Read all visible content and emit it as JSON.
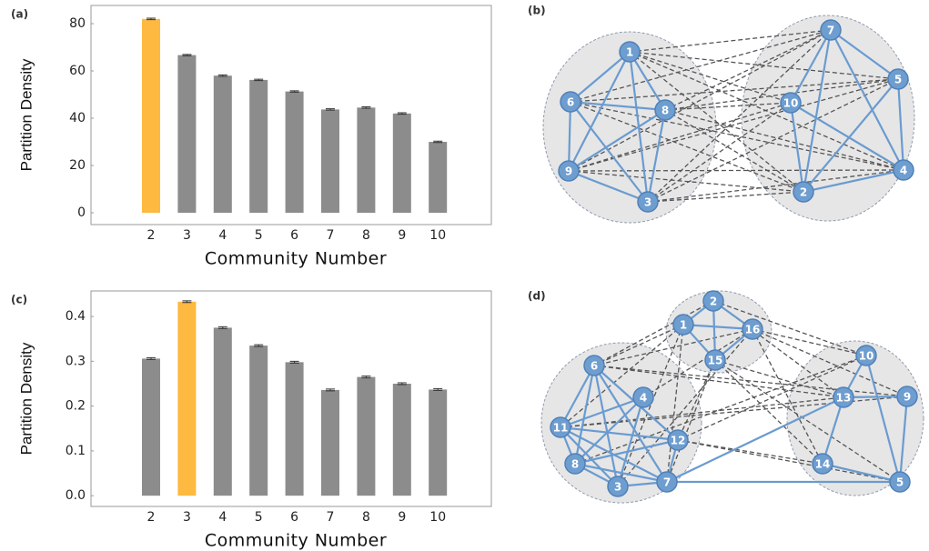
{
  "chart_data": [
    {
      "type": "bar",
      "panel": "(a)",
      "ylabel": "Partition Density",
      "xlabel": "Community Number",
      "categories": [
        "2",
        "3",
        "4",
        "5",
        "6",
        "7",
        "8",
        "9",
        "10"
      ],
      "values": [
        82,
        66.7,
        58,
        56.2,
        51.3,
        43.7,
        44.5,
        42,
        30
      ],
      "errors": [
        0.3,
        0.3,
        0.3,
        0.3,
        0.3,
        0.3,
        0.3,
        0.3,
        0.3
      ],
      "colors": [
        "#fdb940",
        "#8c8c8c",
        "#8c8c8c",
        "#8c8c8c",
        "#8c8c8c",
        "#8c8c8c",
        "#8c8c8c",
        "#8c8c8c",
        "#8c8c8c"
      ],
      "ylim": [
        -5,
        87.7
      ],
      "yticks": [
        0,
        20,
        40,
        60,
        80
      ],
      "grid": false
    },
    {
      "type": "bar",
      "panel": "(c)",
      "ylabel": "Partition Density",
      "xlabel": "Community Number",
      "categories": [
        "2",
        "3",
        "4",
        "5",
        "6",
        "7",
        "8",
        "9",
        "10"
      ],
      "values": [
        0.306,
        0.433,
        0.375,
        0.335,
        0.298,
        0.236,
        0.265,
        0.25,
        0.237
      ],
      "errors": [
        0.002,
        0.002,
        0.002,
        0.002,
        0.002,
        0.002,
        0.002,
        0.002,
        0.002
      ],
      "colors": [
        "#8c8c8c",
        "#fdb940",
        "#8c8c8c",
        "#8c8c8c",
        "#8c8c8c",
        "#8c8c8c",
        "#8c8c8c",
        "#8c8c8c",
        "#8c8c8c"
      ],
      "ylim": [
        -0.024,
        0.457
      ],
      "yticks": [
        {
          "value": 0,
          "label": "0.0"
        },
        0.1,
        0.2,
        0.3,
        0.4
      ],
      "grid": false
    }
  ],
  "diagrams": [
    {
      "panel": "(b)",
      "nodes": [
        "1",
        "6",
        "8",
        "9",
        "3",
        "7",
        "5",
        "10",
        "4",
        "2"
      ]
    },
    {
      "panel": "(d)",
      "nodes": [
        "2",
        "1",
        "16",
        "15",
        "6",
        "4",
        "11",
        "12",
        "8",
        "3",
        "7",
        "10",
        "13",
        "9",
        "14",
        "5"
      ]
    }
  ]
}
